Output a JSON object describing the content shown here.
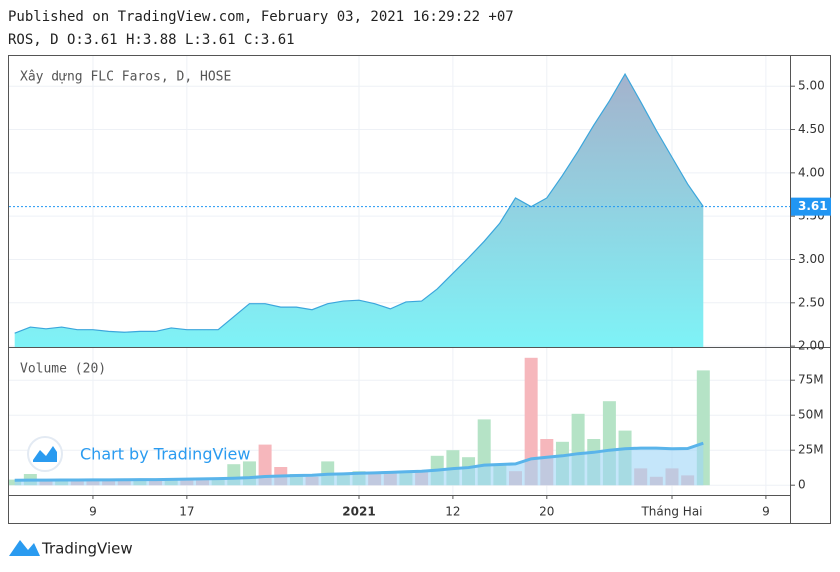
{
  "header": {
    "published": "Published on TradingView.com, February 03, 2021 16:29:22 +07",
    "ohlc": "ROS, D O:3.61 H:3.88 L:3.61 C:3.61"
  },
  "chart_data": [
    {
      "type": "area",
      "title": "Xây dựng FLC Faros, D, HOSE",
      "categories": [
        null,
        null,
        null,
        null,
        null,
        "9",
        null,
        null,
        null,
        null,
        null,
        "17",
        null,
        null,
        null,
        null,
        null,
        null,
        null,
        null,
        null,
        null,
        "2021",
        null,
        null,
        null,
        null,
        null,
        "12",
        null,
        null,
        null,
        null,
        null,
        "20",
        null,
        null,
        null,
        null,
        null,
        null,
        null,
        "Tháng Hai",
        null,
        null,
        null,
        null,
        null,
        "9"
      ],
      "values": [
        2.15,
        2.22,
        2.2,
        2.22,
        2.19,
        2.19,
        2.17,
        2.16,
        2.17,
        2.17,
        2.21,
        2.19,
        2.19,
        2.19,
        2.34,
        2.49,
        2.49,
        2.45,
        2.45,
        2.42,
        2.49,
        2.52,
        2.53,
        2.49,
        2.43,
        2.51,
        2.52,
        2.66,
        2.84,
        3.02,
        3.21,
        3.42,
        3.71,
        3.61,
        3.71,
        3.97,
        4.25,
        4.55,
        4.83,
        5.14,
        4.82,
        4.49,
        4.18,
        3.87,
        3.61,
        null,
        null,
        null,
        null
      ],
      "line_color": "#3ba6dc",
      "fill_colors": [
        "#a4b2cc",
        "#7ef3f7"
      ],
      "last_value": 3.61,
      "last_color": "#2196f3",
      "ylim": [
        1.99,
        5.36
      ],
      "yticks": [
        {
          "value": 2,
          "label": "2.00"
        },
        {
          "value": 2.5,
          "label": "2.50"
        },
        {
          "value": 3,
          "label": "3.00"
        },
        {
          "value": 3.5,
          "label": "3.50"
        },
        {
          "value": 4,
          "label": "4.00"
        },
        {
          "value": 4.5,
          "label": "4.50"
        },
        {
          "value": 5,
          "label": "5.00"
        }
      ],
      "grid": true
    },
    {
      "type": "bar",
      "title": "Volume (20)",
      "watermark": "Chart by TradingView",
      "values": [
        4000000,
        8000000,
        3000000,
        4000000,
        3000000,
        4000000,
        3000000,
        3000000,
        4000000,
        3000000,
        5000000,
        4000000,
        4000000,
        5000000,
        15000000,
        17000000,
        29000000,
        13000000,
        8000000,
        6000000,
        17000000,
        9000000,
        10000000,
        9000000,
        10000000,
        10000000,
        10000000,
        21000000,
        25000000,
        20000000,
        47000000,
        14000000,
        10000000,
        91000000,
        33000000,
        31000000,
        51000000,
        33000000,
        60000000,
        39000000,
        12000000,
        6000000,
        12000000,
        7000000,
        82000000,
        null,
        null,
        null,
        null
      ],
      "colors": [
        "#b5e3c6",
        "#b5e3c6",
        "#f6b7bc",
        "#b5e3c6",
        "#f6b7bc",
        "#f6b7bc",
        "#f6b7bc",
        "#f6b7bc",
        "#b5e3c6",
        "#f6b7bc",
        "#b5e3c6",
        "#f6b7bc",
        "#f6b7bc",
        "#b5e3c6",
        "#b5e3c6",
        "#b5e3c6",
        "#f6b7bc",
        "#f6b7bc",
        "#b5e3c6",
        "#f6b7bc",
        "#b5e3c6",
        "#b5e3c6",
        "#b5e3c6",
        "#f6b7bc",
        "#f6b7bc",
        "#b5e3c6",
        "#f6b7bc",
        "#b5e3c6",
        "#b5e3c6",
        "#b5e3c6",
        "#b5e3c6",
        "#b5e3c6",
        "#f6b7bc",
        "#f6b7bc",
        "#f6b7bc",
        "#b5e3c6",
        "#b5e3c6",
        "#b5e3c6",
        "#b5e3c6",
        "#b5e3c6",
        "#f6b7bc",
        "#f6b7bc",
        "#f6b7bc",
        "#f6b7bc",
        "#b5e3c6",
        null,
        null,
        null,
        null
      ],
      "ma": {
        "values": [
          3500000,
          3600000,
          3600000,
          3700000,
          3700000,
          3800000,
          3800000,
          3900000,
          4000000,
          4000000,
          4200000,
          4300000,
          4500000,
          4700000,
          5000000,
          5400000,
          6200000,
          6600000,
          6900000,
          7100000,
          7800000,
          8100000,
          8500000,
          8800000,
          9200000,
          9600000,
          10000000,
          10800000,
          11800000,
          12600000,
          14300000,
          14800000,
          15200000,
          18800000,
          20000000,
          21000000,
          22500000,
          23500000,
          25000000,
          26000000,
          26500000,
          26500000,
          26000000,
          26200000,
          30000000,
          null,
          null,
          null,
          null
        ],
        "color": "#5ab4ea",
        "fill": "#9fd6f7"
      },
      "ylim": [
        -7000000,
        98000000
      ],
      "yticks": [
        0,
        {
          "value": 25000000,
          "label": "25M"
        },
        {
          "value": 50000000,
          "label": "50M"
        },
        {
          "value": 75000000,
          "label": "75M"
        }
      ],
      "grid": true
    }
  ],
  "footer": {
    "brand": "TradingView"
  }
}
